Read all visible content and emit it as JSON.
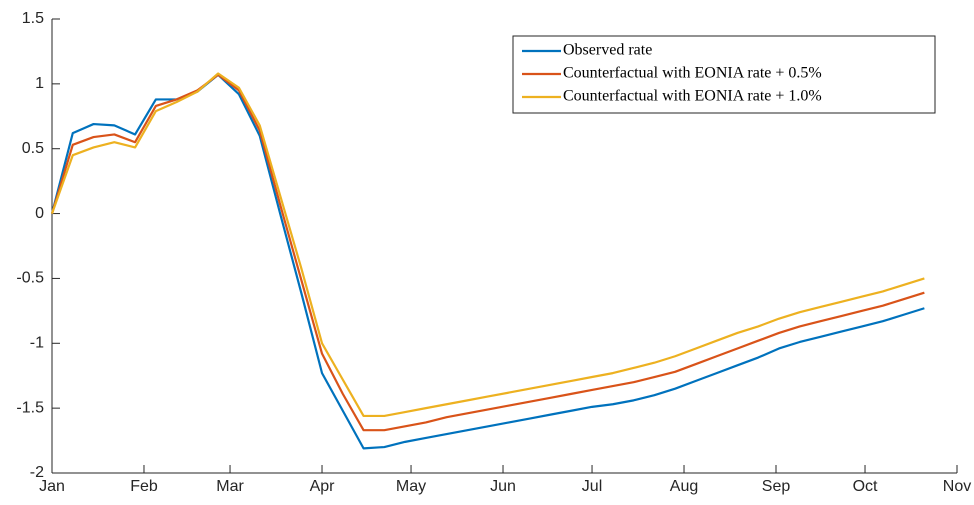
{
  "chart_data": {
    "type": "line",
    "title": "",
    "xlabel": "",
    "ylabel": "",
    "grid": false,
    "legend_position": "top-right",
    "ylim": [
      -2,
      1.5
    ],
    "yticks": [
      -2,
      -1.5,
      -1,
      -0.5,
      0,
      0.5,
      1,
      1.5
    ],
    "ytick_labels": [
      "-2",
      "-1.5",
      "-1",
      "-0.5",
      "0",
      "0.5",
      "1",
      "1.5"
    ],
    "xlim": [
      "2020-01-01",
      "2020-11-01"
    ],
    "xticks": [
      "2020-01-01",
      "2020-02-01",
      "2020-03-01",
      "2020-04-01",
      "2020-05-01",
      "2020-06-01",
      "2020-07-01",
      "2020-08-01",
      "2020-09-01",
      "2020-10-01",
      "2020-11-01"
    ],
    "xtick_labels": [
      "Jan",
      "Feb",
      "Mar",
      "Apr",
      "May",
      "Jun",
      "Jul",
      "Aug",
      "Sep",
      "Oct",
      "Nov"
    ],
    "x": [
      "2020-01-01",
      "2020-01-08",
      "2020-01-15",
      "2020-01-22",
      "2020-01-29",
      "2020-02-05",
      "2020-02-12",
      "2020-02-19",
      "2020-02-26",
      "2020-03-04",
      "2020-03-11",
      "2020-03-18",
      "2020-03-25",
      "2020-04-01",
      "2020-04-08",
      "2020-04-15",
      "2020-04-22",
      "2020-04-29",
      "2020-05-06",
      "2020-05-13",
      "2020-05-20",
      "2020-05-27",
      "2020-06-03",
      "2020-06-10",
      "2020-06-17",
      "2020-06-24",
      "2020-07-01",
      "2020-07-08",
      "2020-07-15",
      "2020-07-22",
      "2020-07-29",
      "2020-08-05",
      "2020-08-12",
      "2020-08-19",
      "2020-08-26",
      "2020-09-02",
      "2020-09-09",
      "2020-09-16",
      "2020-09-23",
      "2020-09-30",
      "2020-10-07",
      "2020-10-14",
      "2020-10-21"
    ],
    "series": [
      {
        "name": "Observed rate",
        "color": "#0072BD",
        "values": [
          0.0,
          0.62,
          0.69,
          0.68,
          0.61,
          0.88,
          0.88,
          0.94,
          1.07,
          0.92,
          0.6,
          -0.01,
          -0.61,
          -1.23,
          -1.52,
          -1.81,
          -1.8,
          -1.76,
          -1.73,
          -1.7,
          -1.67,
          -1.64,
          -1.61,
          -1.58,
          -1.55,
          -1.52,
          -1.49,
          -1.47,
          -1.44,
          -1.4,
          -1.35,
          -1.29,
          -1.23,
          -1.17,
          -1.11,
          -1.04,
          -0.99,
          -0.95,
          -0.91,
          -0.87,
          -0.83,
          -0.78,
          -0.73
        ]
      },
      {
        "name": "Counterfactual with EONIA rate + 0.5%",
        "color": "#D95319",
        "values": [
          0.0,
          0.53,
          0.59,
          0.61,
          0.55,
          0.83,
          0.88,
          0.95,
          1.07,
          0.95,
          0.64,
          0.06,
          -0.51,
          -1.08,
          -1.39,
          -1.67,
          -1.67,
          -1.64,
          -1.61,
          -1.57,
          -1.54,
          -1.51,
          -1.48,
          -1.45,
          -1.42,
          -1.39,
          -1.36,
          -1.33,
          -1.3,
          -1.26,
          -1.22,
          -1.16,
          -1.1,
          -1.04,
          -0.98,
          -0.92,
          -0.87,
          -0.83,
          -0.79,
          -0.75,
          -0.71,
          -0.66,
          -0.61
        ]
      },
      {
        "name": "Counterfactual with EONIA rate + 1.0%",
        "color": "#EDB120",
        "values": [
          0.0,
          0.45,
          0.51,
          0.55,
          0.51,
          0.79,
          0.86,
          0.94,
          1.08,
          0.97,
          0.68,
          0.13,
          -0.42,
          -1.0,
          -1.28,
          -1.56,
          -1.56,
          -1.53,
          -1.5,
          -1.47,
          -1.44,
          -1.41,
          -1.38,
          -1.35,
          -1.32,
          -1.29,
          -1.26,
          -1.23,
          -1.19,
          -1.15,
          -1.1,
          -1.04,
          -0.98,
          -0.92,
          -0.87,
          -0.81,
          -0.76,
          -0.72,
          -0.68,
          -0.64,
          -0.6,
          -0.55,
          -0.5
        ]
      }
    ]
  }
}
